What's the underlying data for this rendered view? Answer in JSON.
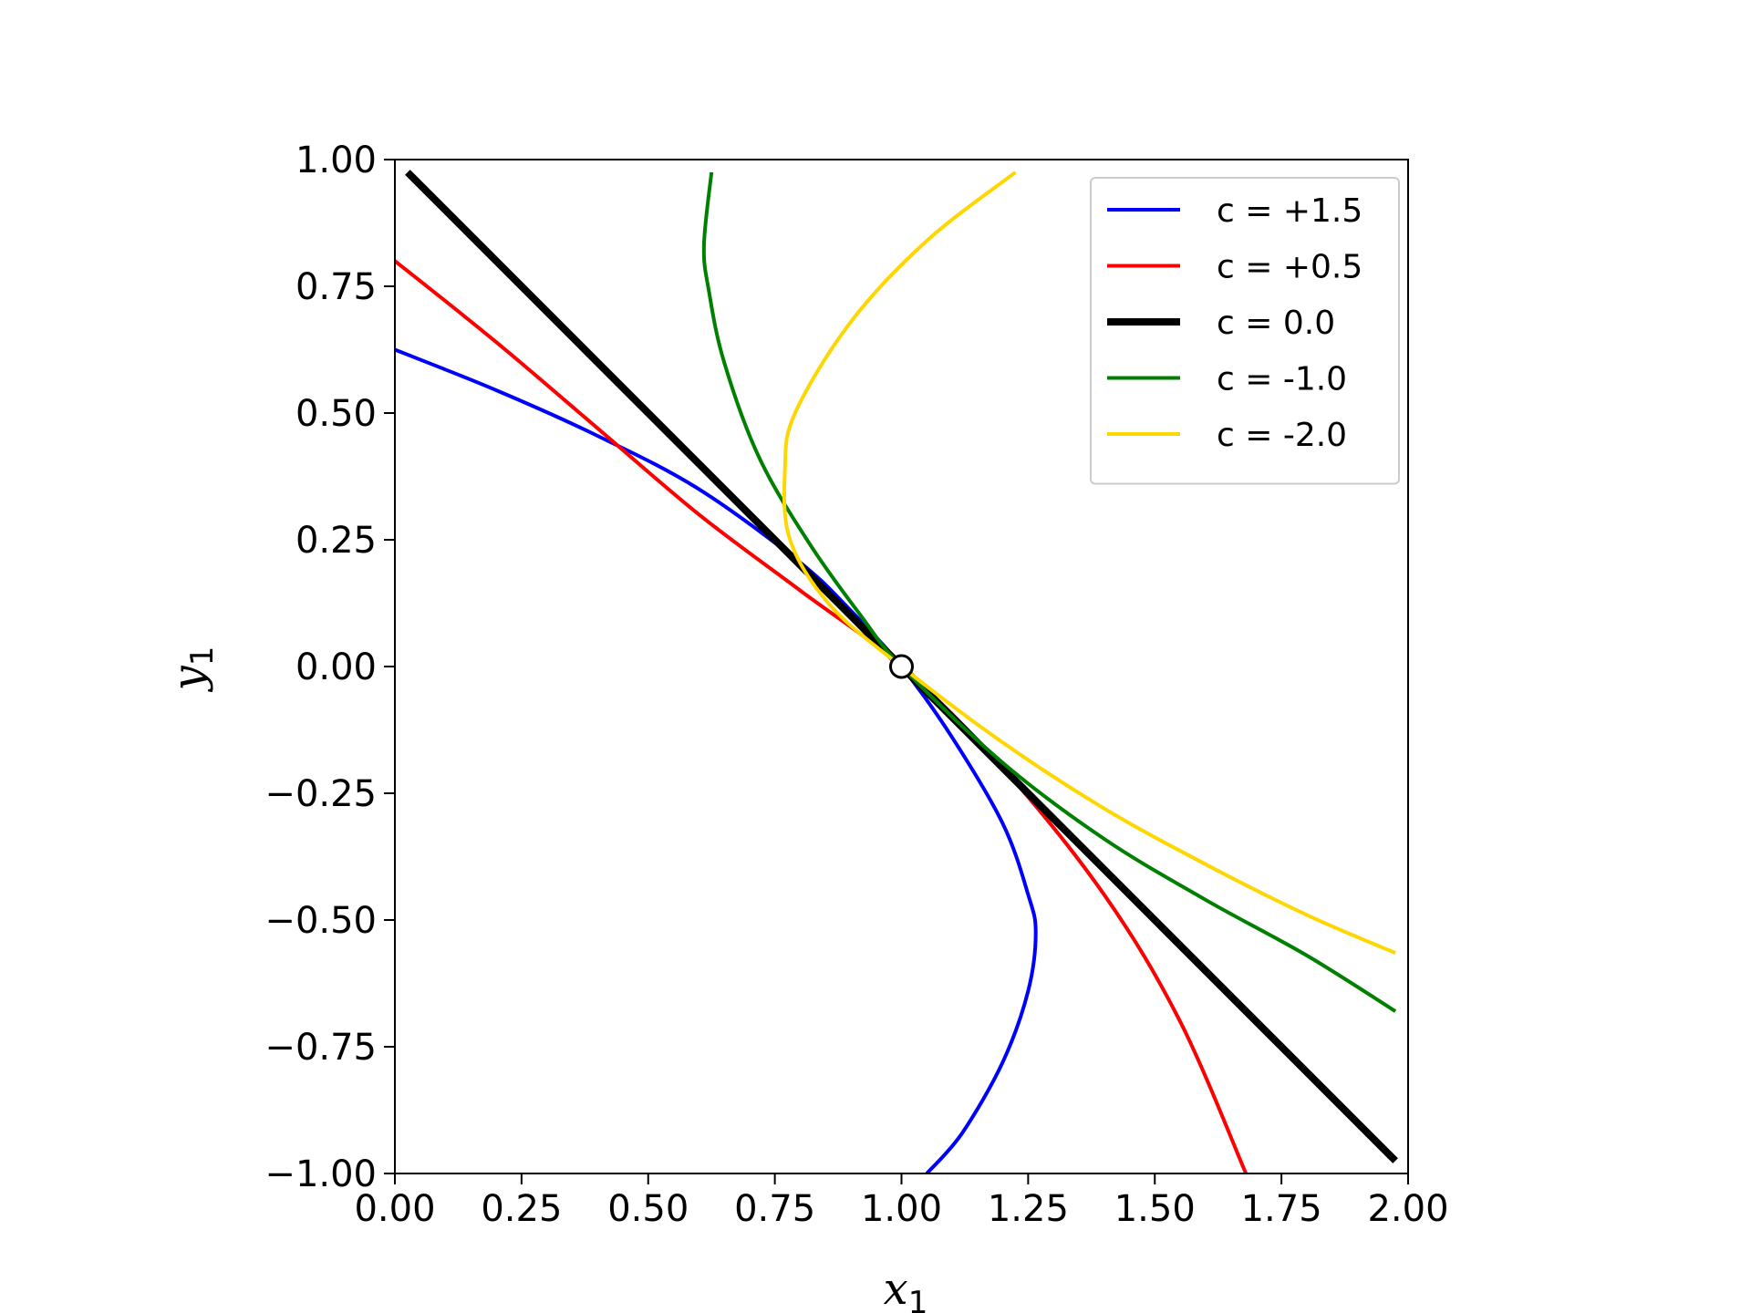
{
  "chart_data": {
    "type": "line",
    "title": "",
    "xlabel": "x",
    "xlabel_subscript": "1",
    "ylabel": "y",
    "ylabel_subscript": "1",
    "xlim": [
      0.0,
      2.0
    ],
    "ylim": [
      -1.0,
      1.0
    ],
    "grid": false,
    "legend_position": "top-right",
    "x_ticks": [
      0.0,
      0.25,
      0.5,
      0.75,
      1.0,
      1.25,
      1.5,
      1.75,
      2.0
    ],
    "x_tick_labels": [
      "0.00",
      "0.25",
      "0.50",
      "0.75",
      "1.00",
      "1.25",
      "1.50",
      "1.75",
      "2.00"
    ],
    "y_ticks": [
      1.0,
      0.75,
      0.5,
      0.25,
      0.0,
      -0.25,
      -0.5,
      -0.75,
      -1.0
    ],
    "y_tick_labels": [
      "1.00",
      "0.75",
      "0.50",
      "0.25",
      "0.00",
      "−0.25",
      "−0.50",
      "−0.75",
      "−1.00"
    ],
    "series": [
      {
        "name": "c = +1.5",
        "color": "#0000ff",
        "line_width": "normal",
        "points": [
          [
            0.0,
            0.625
          ],
          [
            0.2,
            0.545
          ],
          [
            0.4,
            0.455
          ],
          [
            0.6,
            0.35
          ],
          [
            0.8,
            0.205
          ],
          [
            0.9,
            0.11
          ],
          [
            1.0,
            0.0
          ],
          [
            1.1,
            -0.14
          ],
          [
            1.2,
            -0.31
          ],
          [
            1.25,
            -0.45
          ],
          [
            1.265,
            -0.525
          ],
          [
            1.25,
            -0.64
          ],
          [
            1.2,
            -0.78
          ],
          [
            1.12,
            -0.92
          ],
          [
            1.05,
            -1.0
          ]
        ]
      },
      {
        "name": "c = +0.5",
        "color": "#ff0000",
        "line_width": "normal",
        "points": [
          [
            0.0,
            0.8
          ],
          [
            0.2,
            0.64
          ],
          [
            0.4,
            0.47
          ],
          [
            0.6,
            0.3
          ],
          [
            0.8,
            0.15
          ],
          [
            1.0,
            0.0
          ],
          [
            1.2,
            -0.2
          ],
          [
            1.4,
            -0.45
          ],
          [
            1.55,
            -0.7
          ],
          [
            1.68,
            -1.0
          ]
        ]
      },
      {
        "name": "c = 0.0",
        "color": "#000000",
        "line_width": "thick",
        "points": [
          [
            0.025,
            0.975
          ],
          [
            1.0,
            0.0
          ],
          [
            1.975,
            -0.975
          ]
        ]
      },
      {
        "name": "c = -1.0",
        "color": "#008000",
        "line_width": "normal",
        "points": [
          [
            0.625,
            0.975
          ],
          [
            0.61,
            0.83
          ],
          [
            0.62,
            0.74
          ],
          [
            0.65,
            0.6
          ],
          [
            0.72,
            0.41
          ],
          [
            0.82,
            0.24
          ],
          [
            0.92,
            0.1
          ],
          [
            1.0,
            0.0
          ],
          [
            1.2,
            -0.19
          ],
          [
            1.4,
            -0.34
          ],
          [
            1.6,
            -0.46
          ],
          [
            1.8,
            -0.57
          ],
          [
            1.975,
            -0.68
          ]
        ]
      },
      {
        "name": "c = -2.0",
        "color": "#ffd700",
        "line_width": "normal",
        "points": [
          [
            1.225,
            0.975
          ],
          [
            1.05,
            0.84
          ],
          [
            0.9,
            0.68
          ],
          [
            0.79,
            0.5
          ],
          [
            0.77,
            0.39
          ],
          [
            0.78,
            0.25
          ],
          [
            0.86,
            0.12
          ],
          [
            1.0,
            0.0
          ],
          [
            1.2,
            -0.15
          ],
          [
            1.4,
            -0.28
          ],
          [
            1.6,
            -0.39
          ],
          [
            1.8,
            -0.49
          ],
          [
            1.975,
            -0.565
          ]
        ]
      }
    ],
    "annotations": [
      {
        "type": "marker",
        "shape": "open-circle",
        "x": 1.0,
        "y": 0.0
      }
    ]
  }
}
